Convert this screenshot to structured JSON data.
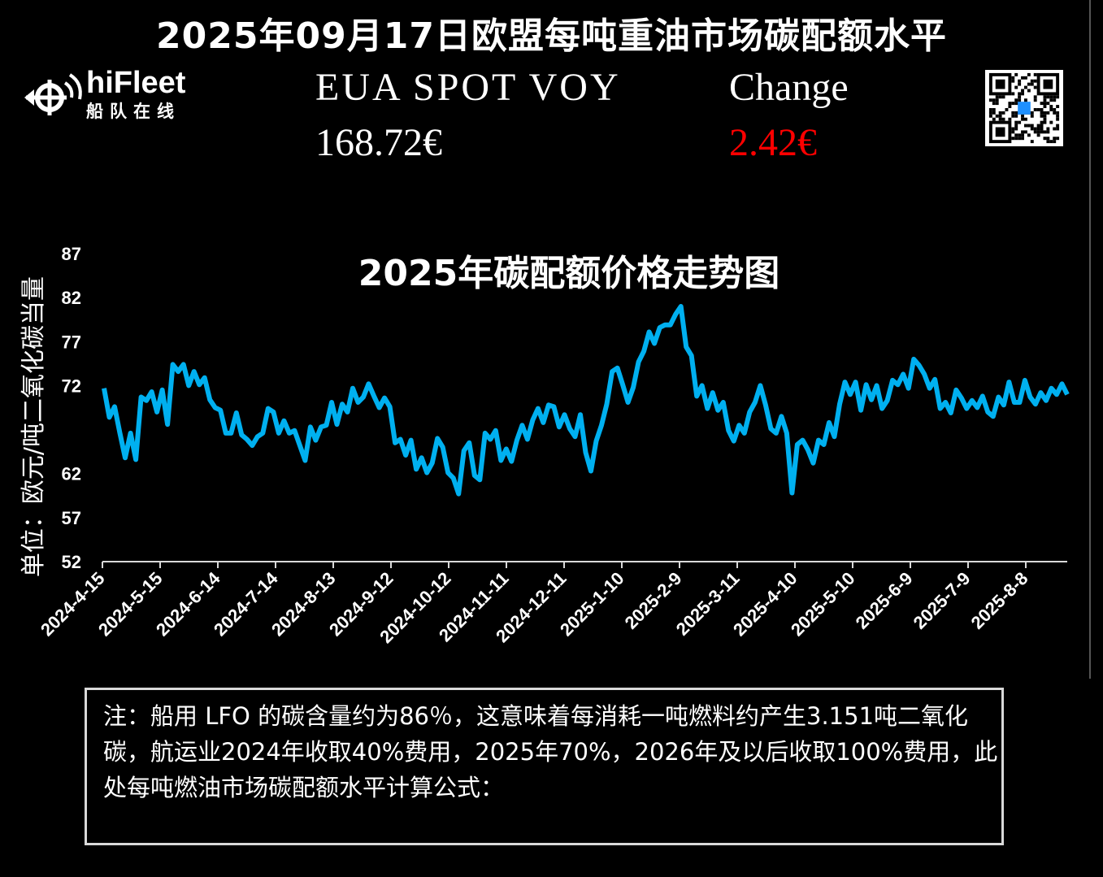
{
  "header": {
    "title": "2025年09月17日欧盟每吨重油市场碳配额水平",
    "logo_name": "hiFleet",
    "logo_cn": "船队在线",
    "eua_label": "EUA SPOT VOY",
    "eua_value": "168.72€",
    "change_label": "Change",
    "change_value": "2.42€",
    "change_color": "#ff0000"
  },
  "note": "注：船用 LFO 的碳含量约为86％，这意味着每消耗一吨燃料约产生3.151吨二氧化碳，航运业2024年收取40%费用，2025年70%，2026年及以后收取100%费用，此处每吨燃油市场碳配额水平计算公式：",
  "chart_data": {
    "type": "line",
    "title": "2025年碳配额价格走势图",
    "ylabel": "单位：欧元/吨二氧化碳当量",
    "xlabel": "",
    "ylim": [
      52,
      87
    ],
    "yticks": [
      87,
      82,
      77,
      72,
      62,
      57,
      52
    ],
    "xticks": [
      "2024-4-15",
      "2024-5-15",
      "2024-6-14",
      "2024-7-14",
      "2024-8-13",
      "2024-9-12",
      "2024-10-12",
      "2024-11-11",
      "2024-12-11",
      "2025-1-10",
      "2025-2-9",
      "2025-3-11",
      "2025-4-10",
      "2025-5-10",
      "2025-6-9",
      "2025-7-9",
      "2025-8-8"
    ],
    "line_color": "#00b0f0",
    "grid": false,
    "values": [
      71.7,
      68.4,
      69.6,
      66.6,
      63.8,
      66.6,
      63.6,
      70.7,
      70.3,
      71.3,
      69.0,
      71.5,
      67.6,
      74.4,
      73.6,
      74.4,
      72.0,
      73.6,
      72.1,
      72.9,
      70.4,
      69.5,
      69.2,
      66.6,
      66.6,
      68.9,
      66.4,
      65.9,
      65.2,
      66.2,
      66.6,
      69.4,
      69.0,
      66.6,
      68.0,
      66.6,
      66.9,
      65.2,
      63.5,
      67.3,
      65.8,
      67.3,
      67.5,
      70.1,
      67.6,
      69.9,
      69.0,
      71.7,
      70.1,
      70.7,
      72.2,
      70.8,
      69.5,
      70.6,
      69.6,
      65.5,
      65.9,
      64.1,
      65.8,
      62.5,
      63.8,
      62.1,
      63.2,
      66.0,
      65.0,
      62.1,
      61.5,
      59.7,
      64.6,
      65.5,
      61.8,
      61.3,
      66.6,
      65.9,
      66.9,
      63.5,
      64.8,
      63.4,
      65.8,
      67.5,
      65.9,
      68.1,
      69.4,
      67.8,
      69.8,
      69.6,
      67.3,
      68.7,
      67.1,
      66.2,
      68.7,
      64.4,
      62.3,
      65.7,
      67.5,
      69.9,
      73.6,
      74.0,
      72.1,
      70.1,
      71.8,
      74.7,
      75.9,
      78.1,
      76.8,
      78.6,
      78.9,
      78.9,
      80.1,
      81.0,
      76.4,
      75.4,
      70.8,
      72.0,
      69.4,
      71.2,
      69.2,
      70.1,
      66.9,
      65.7,
      67.5,
      66.6,
      69.0,
      70.1,
      72.0,
      69.8,
      67.1,
      66.6,
      68.5,
      66.6,
      59.8,
      65.3,
      65.8,
      64.7,
      63.2,
      65.8,
      65.3,
      67.8,
      66.2,
      69.9,
      72.4,
      71.0,
      72.4,
      69.2,
      72.1,
      70.4,
      72.0,
      69.4,
      70.3,
      72.6,
      72.1,
      73.3,
      71.7,
      75.0,
      74.3,
      73.3,
      71.7,
      72.7,
      69.4,
      70.1,
      68.9,
      71.5,
      70.6,
      69.4,
      70.3,
      69.5,
      70.8,
      69.0,
      68.5,
      70.7,
      69.8,
      72.4,
      70.1,
      70.1,
      72.6,
      70.7,
      69.9,
      71.2,
      70.3,
      71.7,
      71.0,
      72.2,
      71.0
    ]
  }
}
